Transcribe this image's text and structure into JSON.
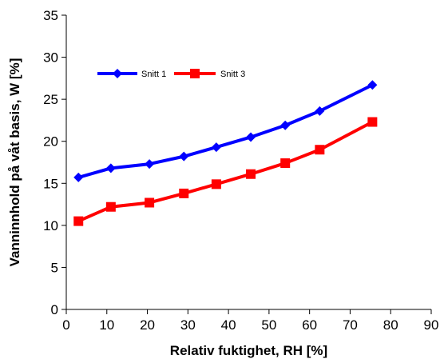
{
  "chart_data": {
    "type": "line",
    "xlabel": "Relativ fuktighet, RH [%]",
    "ylabel": "Vanninnhold på våt basis, W [%]",
    "xlim": [
      0,
      90
    ],
    "ylim": [
      0,
      35
    ],
    "xticks": [
      0,
      10,
      20,
      30,
      40,
      50,
      60,
      70,
      80,
      90
    ],
    "yticks": [
      0,
      5,
      10,
      15,
      20,
      25,
      30,
      35
    ],
    "grid": false,
    "legend_position": "top-left",
    "series": [
      {
        "name": "Snitt 1",
        "color": "#0000ff",
        "marker": "diamond",
        "x": [
          3,
          11,
          20.5,
          29,
          37,
          45.5,
          54,
          62.5,
          75.5
        ],
        "y": [
          15.7,
          16.8,
          17.3,
          18.2,
          19.3,
          20.5,
          21.9,
          23.6,
          26.7
        ]
      },
      {
        "name": "Snitt 3",
        "color": "#ff0000",
        "marker": "square",
        "x": [
          3,
          11,
          20.5,
          29,
          37,
          45.5,
          54,
          62.5,
          75.5
        ],
        "y": [
          10.5,
          12.2,
          12.7,
          13.8,
          14.9,
          16.1,
          17.4,
          19.0,
          22.3
        ]
      }
    ]
  }
}
